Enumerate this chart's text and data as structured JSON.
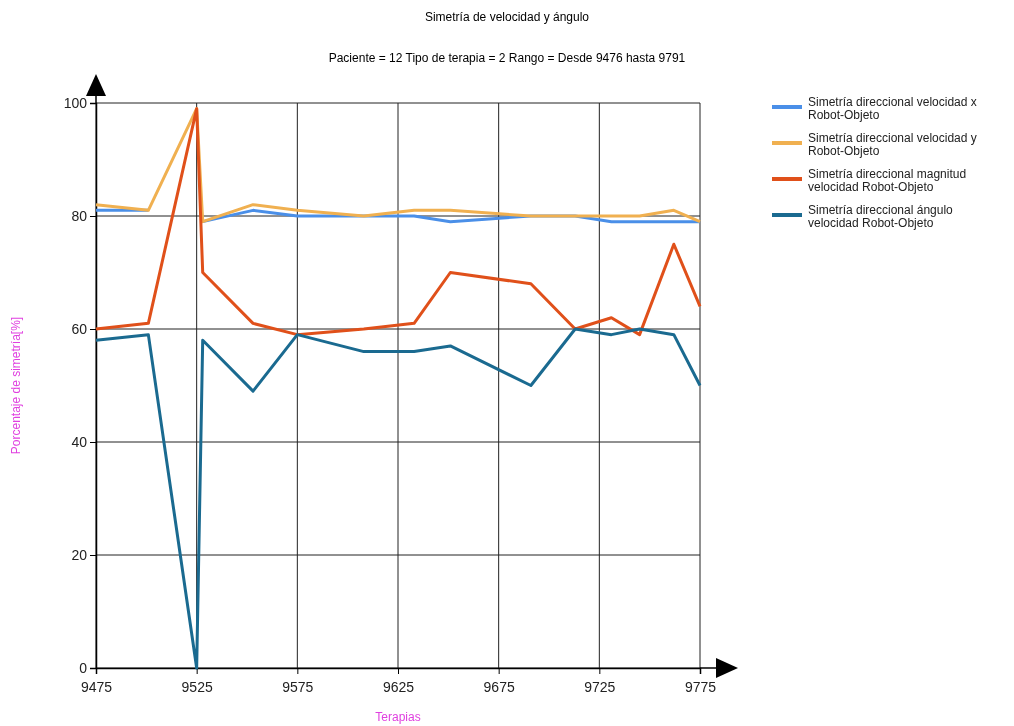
{
  "chart_data": {
    "type": "line",
    "title": "Simetría de velocidad y ángulo",
    "subtitle": "Paciente = 12 Tipo de terapia = 2 Rango = Desde 9476 hasta 9791",
    "xlabel": "Terapias",
    "ylabel": "Porcentaje de simetría[%]",
    "x": [
      9475,
      9501,
      9525,
      9528,
      9553,
      9575,
      9608,
      9633,
      9651,
      9691,
      9713,
      9731,
      9745,
      9762,
      9775
    ],
    "series": [
      {
        "name": "Simetría direccional velocidad x Robot-Objeto",
        "color": "#4a8fe8",
        "values": [
          81,
          81,
          null,
          79,
          81,
          80,
          80,
          80,
          79,
          80,
          80,
          79,
          79,
          79,
          79
        ]
      },
      {
        "name": "Simetría direccional velocidad y Robot-Objeto",
        "color": "#f0b050",
        "values": [
          82,
          81,
          99,
          79,
          82,
          81,
          80,
          81,
          81,
          80,
          80,
          80,
          80,
          81,
          79
        ]
      },
      {
        "name": "Simetría direccional magnitud velocidad Robot-Objeto",
        "color": "#e0501a",
        "values": [
          60,
          61,
          99,
          70,
          61,
          59,
          60,
          61,
          70,
          68,
          60,
          62,
          59,
          75,
          64
        ]
      },
      {
        "name": "Simetría direccional ángulo velocidad Robot-Objeto",
        "color": "#1a6a90",
        "values": [
          58,
          59,
          0,
          58,
          49,
          59,
          56,
          56,
          57,
          50,
          60,
          59,
          60,
          59,
          50
        ]
      }
    ],
    "xlim": [
      9475,
      9775
    ],
    "xticks": [
      9475,
      9525,
      9575,
      9625,
      9675,
      9725,
      9775
    ],
    "ylim": [
      0,
      100
    ],
    "yticks": [
      0,
      20,
      40,
      60,
      80,
      100
    ],
    "grid": true,
    "legend": "right",
    "marker": "none",
    "line_style": "solid"
  }
}
